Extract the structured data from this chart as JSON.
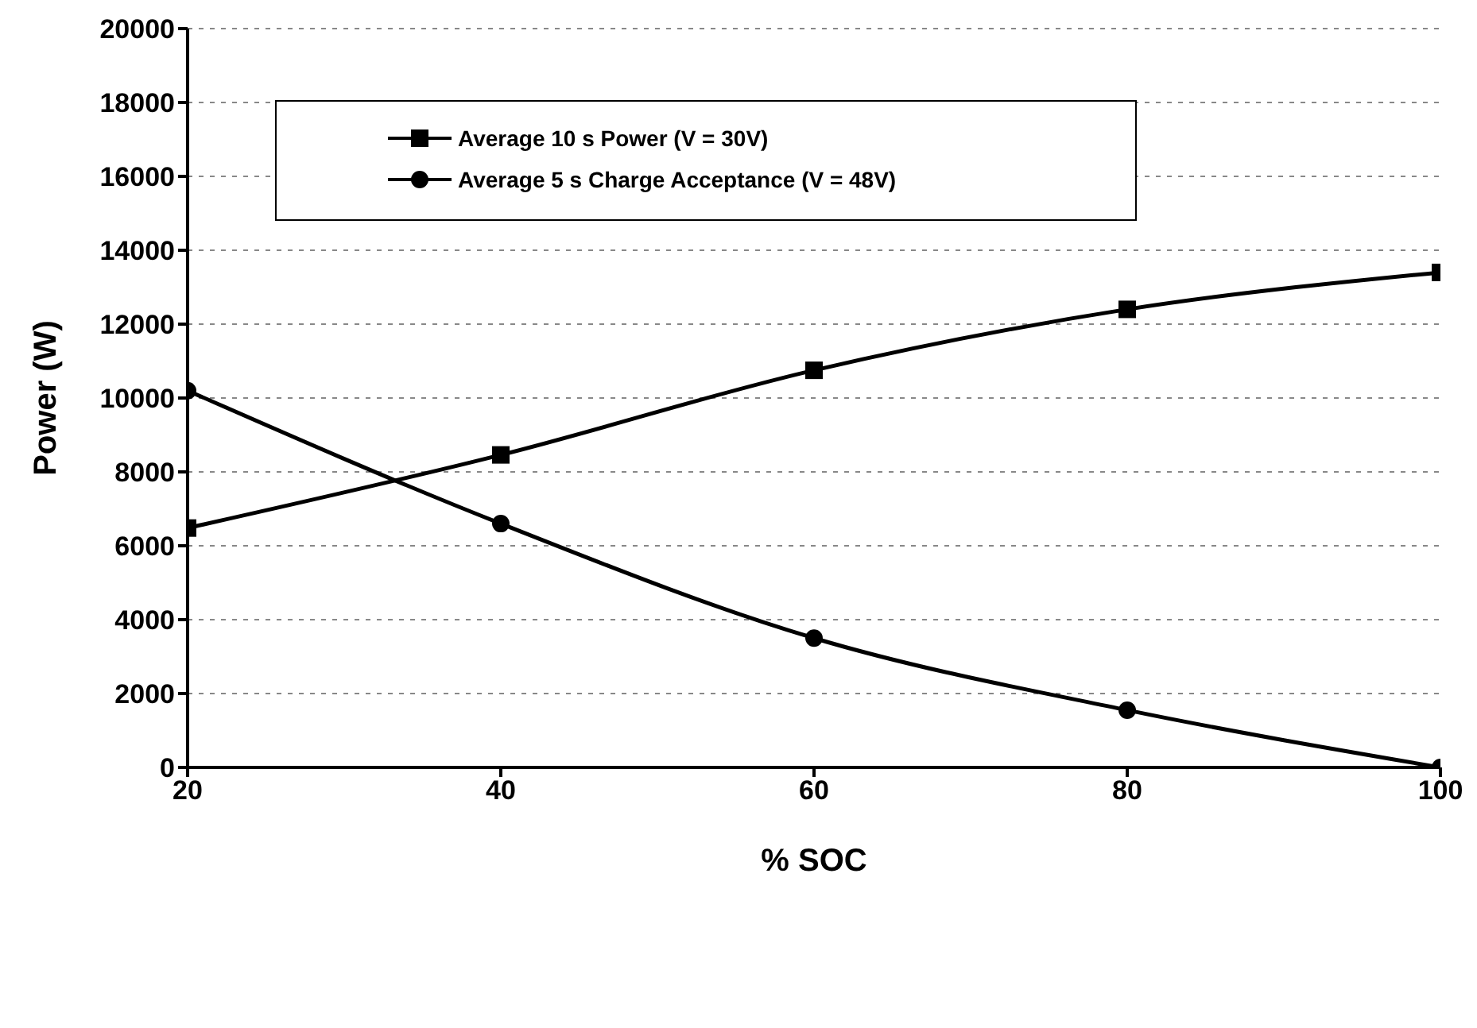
{
  "chart_data": {
    "type": "line",
    "xlabel": "% SOC",
    "ylabel": "Power (W)",
    "x": [
      20,
      40,
      60,
      80,
      100
    ],
    "series": [
      {
        "name": "Average 10 s Power (V = 30V)",
        "color": "#000000",
        "marker": "square",
        "values": [
          6480,
          8460,
          10750,
          12400,
          13400
        ]
      },
      {
        "name": "Average 5 s Charge Acceptance (V = 48V)",
        "color": "#000000",
        "marker": "circle",
        "values": [
          10200,
          6600,
          3500,
          1550,
          0
        ]
      }
    ],
    "xlim": [
      20,
      100
    ],
    "xticks": [
      20,
      40,
      60,
      80,
      100
    ],
    "ylim": [
      0,
      20000
    ],
    "yticks": [
      0,
      2000,
      4000,
      6000,
      8000,
      10000,
      12000,
      14000,
      16000,
      18000,
      20000
    ],
    "grid": "y",
    "legend": "top left",
    "line_style": "solid"
  }
}
